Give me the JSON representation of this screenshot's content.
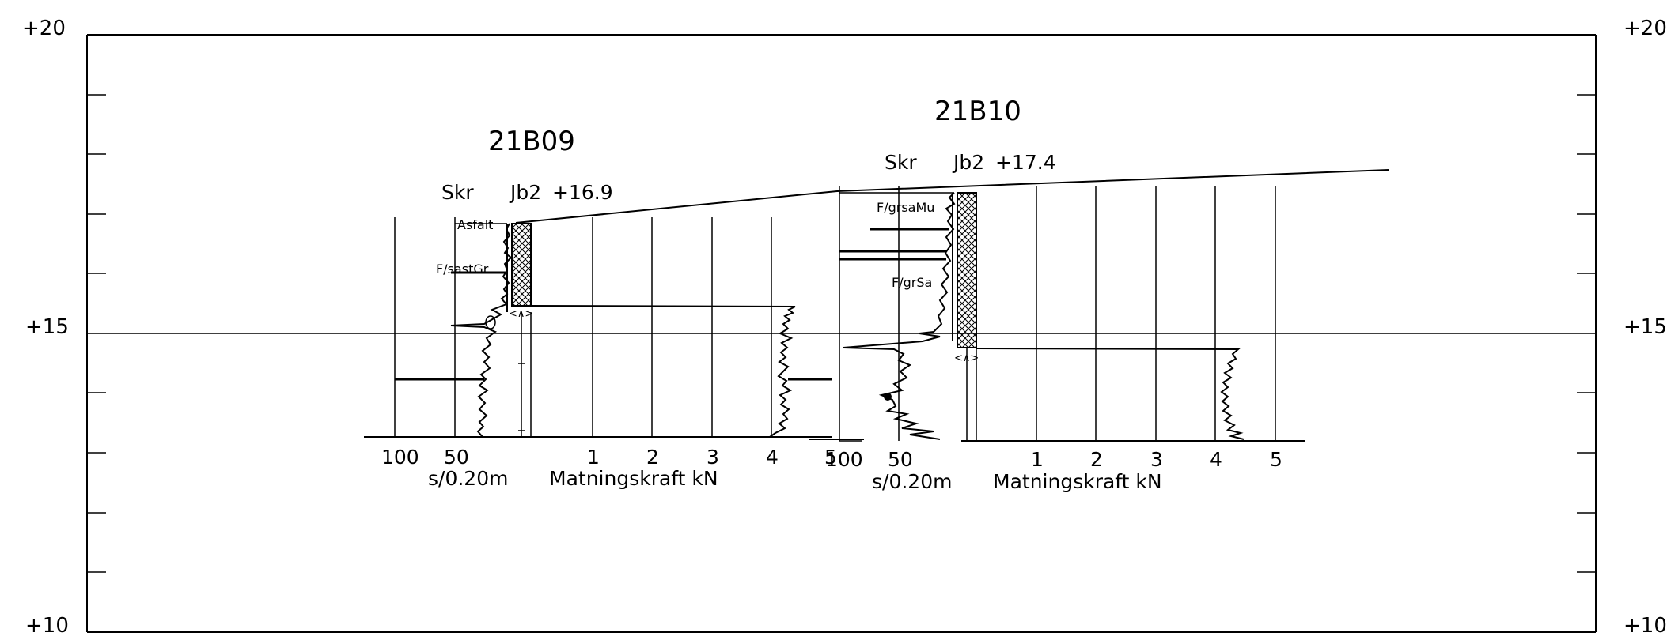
{
  "elevation_labels": {
    "top": "+20",
    "middle": "+15",
    "bottom": "+10"
  },
  "boreholes": [
    {
      "id": "21B09",
      "method_left": "Skr",
      "method_right": "Jb2",
      "ground_level": "+16.9",
      "layers": [
        "Asfalt",
        "F/sastGr"
      ],
      "left_axis_ticks": [
        "100",
        "50"
      ],
      "left_axis_label": "s/0.20m",
      "right_axis_ticks": [
        "1",
        "2",
        "3",
        "4",
        "5"
      ],
      "right_axis_label": "Matningskraft kN"
    },
    {
      "id": "21B10",
      "method_left": "Skr",
      "method_right": "Jb2",
      "ground_level": "+17.4",
      "layers": [
        "F/grsaMu",
        "F/grSa"
      ],
      "left_axis_ticks": [
        "100",
        "50"
      ],
      "left_axis_label": "s/0.20m",
      "right_axis_ticks": [
        "1",
        "2",
        "3",
        "4",
        "5"
      ],
      "right_axis_label": "Matningskraft kN"
    }
  ]
}
